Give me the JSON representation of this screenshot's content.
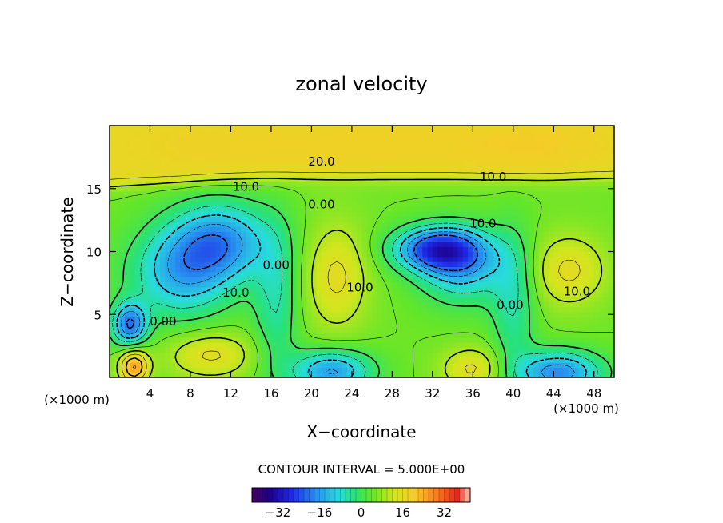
{
  "chart_data": {
    "type": "heatmap",
    "title": "zonal velocity",
    "xlabel": "X−coordinate",
    "ylabel": "Z−coordinate",
    "x_units_left": "(×1000 m)",
    "x_units_right": "(×1000 m)",
    "xlim": [
      0,
      50
    ],
    "ylim": [
      0,
      20
    ],
    "x_ticks": [
      4,
      8,
      12,
      16,
      20,
      24,
      28,
      32,
      36,
      40,
      44,
      48
    ],
    "y_ticks": [
      5,
      10,
      15
    ],
    "contour_interval_label": "CONTOUR INTERVAL = 5.000E+00",
    "colorbar": {
      "min": -42,
      "max": 42,
      "ticks": [
        -32,
        -16,
        0,
        16,
        32
      ],
      "tick_labels": [
        "−32",
        "−16",
        "0",
        "16",
        "32"
      ]
    },
    "contour_labels": [
      {
        "text": "20.0",
        "x": 21,
        "z": 17.2
      },
      {
        "text": "10.0",
        "x": 38,
        "z": 16.0
      },
      {
        "text": "10.0",
        "x": 13.5,
        "z": 15.2
      },
      {
        "text": "0.00",
        "x": 21,
        "z": 13.8
      },
      {
        "text": "10.0",
        "x": 37,
        "z": 12.3
      },
      {
        "text": "0.00",
        "x": 16.5,
        "z": 9.0
      },
      {
        "text": "10.0",
        "x": 12.5,
        "z": 6.8
      },
      {
        "text": "10.0",
        "x": 24.8,
        "z": 7.2
      },
      {
        "text": "0.00",
        "x": 39.7,
        "z": 5.8
      },
      {
        "text": "10.0",
        "x": 46.3,
        "z": 6.9
      },
      {
        "text": "0.00",
        "x": 5.3,
        "z": 4.5
      }
    ],
    "features": [
      {
        "value": 21,
        "x": 42,
        "z": 18.5,
        "sx": 5,
        "sz": 1.5
      },
      {
        "value": 16,
        "x": 28,
        "z": 18.5,
        "sx": 7,
        "sz": 1.5
      },
      {
        "value": 15,
        "x": 12,
        "z": 18.5,
        "sx": 7,
        "sz": 1.5
      },
      {
        "value": -16,
        "x": 11,
        "z": 10.8,
        "sx": 3.5,
        "sz": 2.2
      },
      {
        "value": -12,
        "x": 7,
        "z": 8.2,
        "sx": 3.5,
        "sz": 2.5
      },
      {
        "value": -20,
        "x": 2,
        "z": 4.2,
        "sx": 1.2,
        "sz": 1.2
      },
      {
        "value": 16,
        "x": 22.5,
        "z": 8.0,
        "sx": 2.2,
        "sz": 3.0
      },
      {
        "value": -24,
        "x": 32.5,
        "z": 10.2,
        "sx": 3.0,
        "sz": 1.2
      },
      {
        "value": -12,
        "x": 35,
        "z": 8.8,
        "sx": 3.0,
        "sz": 2.0
      },
      {
        "value": 16,
        "x": 45.5,
        "z": 8.5,
        "sx": 2.6,
        "sz": 2.0
      },
      {
        "value": 16,
        "x": 10,
        "z": 1.8,
        "sx": 3.0,
        "sz": 1.3
      },
      {
        "value": 26,
        "x": 2.4,
        "z": 0.9,
        "sx": 1.0,
        "sz": 1.0
      },
      {
        "value": -16,
        "x": 22,
        "z": 0.5,
        "sx": 2.8,
        "sz": 1.2
      },
      {
        "value": 16,
        "x": 36,
        "z": 0.7,
        "sx": 2.2,
        "sz": 1.2
      },
      {
        "value": -18,
        "x": 44.5,
        "z": 0.4,
        "sx": 3.0,
        "sz": 1.2
      },
      {
        "value": -5,
        "x": 16.5,
        "z": 6.0,
        "sx": 1.5,
        "sz": 4.0
      },
      {
        "value": -5,
        "x": 40,
        "z": 6.0,
        "sx": 1.5,
        "sz": 4.0
      }
    ],
    "background_value": 5,
    "upper_layer_value": 12,
    "upper_layer_base_z": 16,
    "grid": false,
    "legend": "bottom"
  }
}
